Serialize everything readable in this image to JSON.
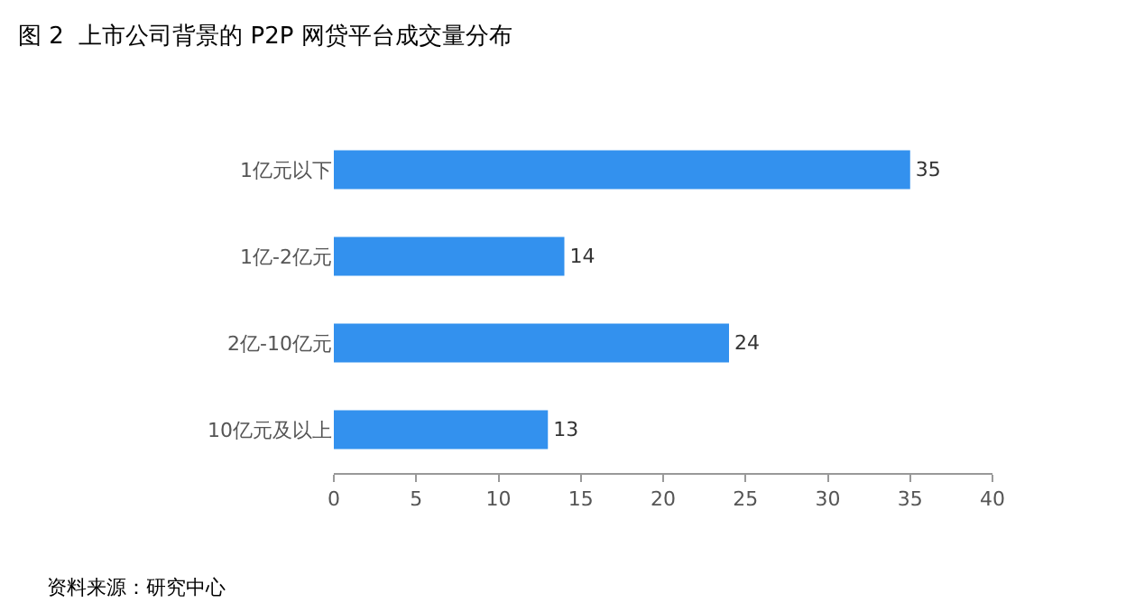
{
  "chart_data": {
    "type": "bar",
    "orientation": "horizontal",
    "title": "图 2  上市公司背景的 P2P 网贷平台成交量分布",
    "categories": [
      "1亿元以下",
      "1亿-2亿元",
      "2亿-10亿元",
      "10亿元及以上"
    ],
    "values": [
      35,
      14,
      24,
      13
    ],
    "color": "#3391ee",
    "xlim": [
      0,
      40
    ],
    "xticks": [
      0,
      5,
      10,
      15,
      20,
      25,
      30,
      35,
      40
    ],
    "data_labels": true,
    "annotations": [
      "资料来源：研究中心"
    ]
  }
}
